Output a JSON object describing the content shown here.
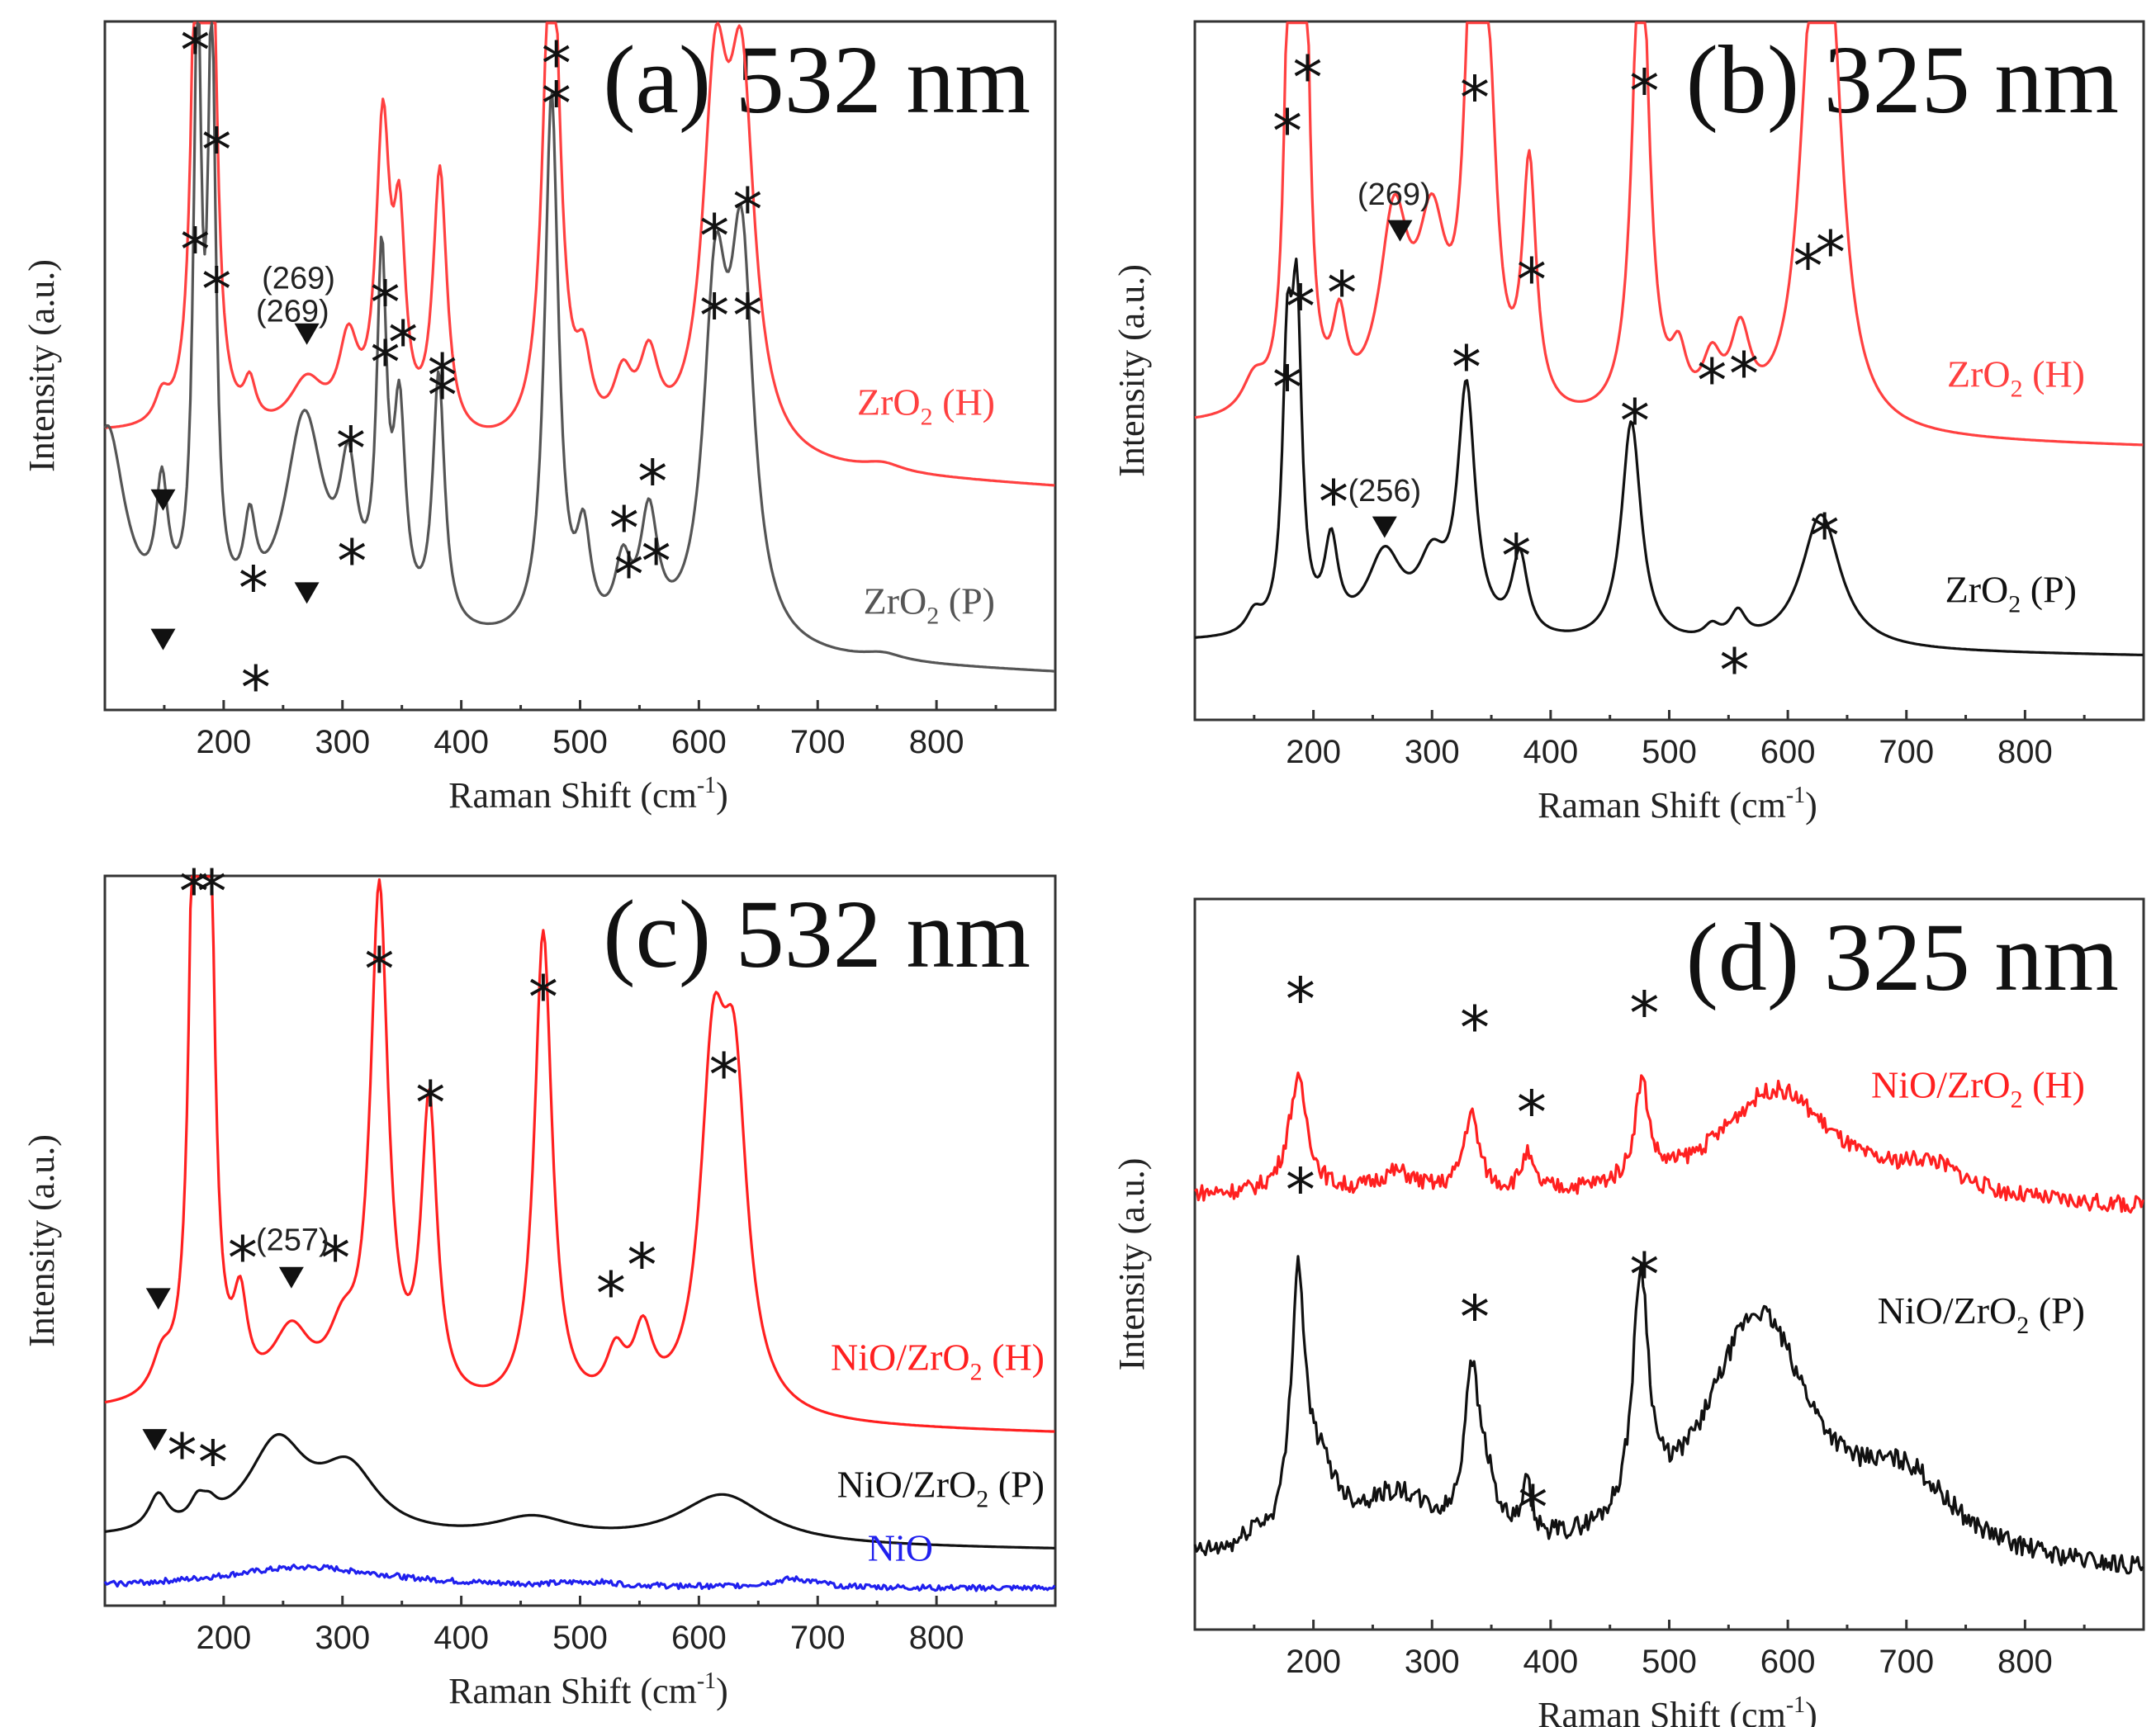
{
  "chart_data": [
    {
      "type": "line",
      "id": "a",
      "title": "(a) 532 nm",
      "xlabel": "Raman Shift (cm-1)",
      "xlabel_main": "Raman Shift (cm",
      "xlabel_sup": "-1",
      "xlabel_close": ")",
      "ylabel": "Intensity (a.u.)",
      "xlim": [
        100,
        900
      ],
      "xticks": [
        200,
        300,
        400,
        500,
        600,
        700,
        800
      ],
      "series": [
        {
          "name": "ZrO2 (H)",
          "label_main": "ZrO",
          "label_sub": "2",
          "label_rest": " (H)",
          "color": "#ff4040",
          "baseline": 0.4,
          "slope": -0.08,
          "noise": 0.0,
          "peaks": [
            [
              148,
              0.04,
              7
            ],
            [
              178,
              0.93,
              5
            ],
            [
              190,
              0.73,
              5
            ],
            [
              222,
              0.06,
              6
            ],
            [
              270,
              0.08,
              18
            ],
            [
              305,
              0.13,
              10
            ],
            [
              334,
              0.45,
              7
            ],
            [
              348,
              0.28,
              6
            ],
            [
              382,
              0.4,
              7
            ],
            [
              476,
              0.85,
              8
            ],
            [
              503,
              0.1,
              8
            ],
            [
              536,
              0.09,
              10
            ],
            [
              558,
              0.12,
              10
            ],
            [
              614,
              0.52,
              13
            ],
            [
              636,
              0.52,
              13
            ],
            [
              755,
              0.012,
              20
            ]
          ]
        },
        {
          "name": "ZrO2 (P)",
          "label_main": "ZrO",
          "label_sub": "2",
          "label_rest": " (P)",
          "color": "#555555",
          "baseline": 0.1,
          "slope": -0.06,
          "noise": 0.0,
          "peaks": [
            [
              102,
              0.3,
              18
            ],
            [
              148,
              0.18,
              6
            ],
            [
              178,
              0.88,
              4
            ],
            [
              190,
              0.86,
              4
            ],
            [
              222,
              0.12,
              6
            ],
            [
              268,
              0.32,
              20
            ],
            [
              305,
              0.2,
              9
            ],
            [
              333,
              0.52,
              5
            ],
            [
              348,
              0.3,
              6
            ],
            [
              381,
              0.38,
              6
            ],
            [
              476,
              0.82,
              7
            ],
            [
              503,
              0.14,
              7
            ],
            [
              536,
              0.1,
              8
            ],
            [
              558,
              0.18,
              9
            ],
            [
              614,
              0.5,
              12
            ],
            [
              636,
              0.56,
              12
            ],
            [
              755,
              0.01,
              20
            ]
          ]
        }
      ],
      "markers": [
        {
          "kind": "star",
          "x": 176,
          "y": 0.98
        },
        {
          "kind": "star",
          "x": 194,
          "y": 0.83
        },
        {
          "kind": "star",
          "x": 480,
          "y": 0.9
        },
        {
          "kind": "star",
          "x": 336,
          "y": 0.51
        },
        {
          "kind": "star",
          "x": 384,
          "y": 0.46
        },
        {
          "kind": "star",
          "x": 308,
          "y": 0.21
        },
        {
          "kind": "star",
          "x": 541,
          "y": 0.19
        },
        {
          "kind": "star",
          "x": 564,
          "y": 0.21
        },
        {
          "kind": "star",
          "x": 613,
          "y": 0.58
        },
        {
          "kind": "star",
          "x": 641,
          "y": 0.58
        },
        {
          "kind": "star",
          "x": 176,
          "y": 0.68
        },
        {
          "kind": "star",
          "x": 194,
          "y": 0.62
        },
        {
          "kind": "star",
          "x": 225,
          "y": 0.17
        },
        {
          "kind": "star",
          "x": 227,
          "y": 0.02
        },
        {
          "kind": "star",
          "x": 480,
          "y": 0.96
        },
        {
          "kind": "star",
          "x": 336,
          "y": 0.6
        },
        {
          "kind": "star",
          "x": 351,
          "y": 0.54
        },
        {
          "kind": "star",
          "x": 384,
          "y": 0.49
        },
        {
          "kind": "star",
          "x": 307,
          "y": 0.38
        },
        {
          "kind": "star",
          "x": 537,
          "y": 0.26
        },
        {
          "kind": "star",
          "x": 561,
          "y": 0.33
        },
        {
          "kind": "star",
          "x": 613,
          "y": 0.7
        },
        {
          "kind": "star",
          "x": 641,
          "y": 0.74
        },
        {
          "kind": "tri",
          "x": 149,
          "y": 0.09
        },
        {
          "kind": "tri",
          "x": 270,
          "y": 0.16
        },
        {
          "kind": "tri",
          "x": 149,
          "y": 0.3
        },
        {
          "kind": "tri",
          "x": 270,
          "y": 0.55
        }
      ],
      "annotations": [
        {
          "text": "(269)",
          "x": 258,
          "y": 0.57
        },
        {
          "text": "(269)",
          "x": 263,
          "y": 0.62
        }
      ]
    },
    {
      "type": "line",
      "id": "b",
      "title": "(b) 325 nm",
      "xlabel": "Raman Shift (cm-1)",
      "xlabel_main": "Raman Shift (cm",
      "xlabel_sup": "-1",
      "xlabel_close": ")",
      "ylabel": "Intensity (a.u.)",
      "xlim": [
        100,
        900
      ],
      "xticks": [
        200,
        300,
        400,
        500,
        600,
        700,
        800
      ],
      "series": [
        {
          "name": "ZrO2 (H)",
          "label_main": "ZrO",
          "label_sub": "2",
          "label_rest": " (H)",
          "color": "#ff4040",
          "baseline": 0.42,
          "slope": -0.03,
          "noise": 0.0,
          "peaks": [
            [
              150,
              0.05,
              12
            ],
            [
              180,
              0.68,
              5
            ],
            [
              192,
              0.78,
              5
            ],
            [
              222,
              0.12,
              7
            ],
            [
              268,
              0.28,
              15
            ],
            [
              300,
              0.25,
              15
            ],
            [
              334,
              0.62,
              8
            ],
            [
              348,
              0.4,
              8
            ],
            [
              382,
              0.36,
              7
            ],
            [
              476,
              0.78,
              8
            ],
            [
              508,
              0.08,
              8
            ],
            [
              536,
              0.08,
              10
            ],
            [
              560,
              0.12,
              10
            ],
            [
              620,
              0.48,
              13
            ],
            [
              636,
              0.52,
              13
            ]
          ]
        },
        {
          "name": "ZrO2 (P)",
          "label_main": "ZrO",
          "label_sub": "2",
          "label_rest": " (P)",
          "color": "#111111",
          "baseline": 0.1,
          "slope": -0.02,
          "noise": 0.0,
          "peaks": [
            [
              150,
              0.03,
              8
            ],
            [
              178,
              0.38,
              5
            ],
            [
              186,
              0.44,
              5
            ],
            [
              215,
              0.13,
              7
            ],
            [
              260,
              0.12,
              18
            ],
            [
              300,
              0.1,
              15
            ],
            [
              329,
              0.36,
              9
            ],
            [
              374,
              0.12,
              8
            ],
            [
              468,
              0.33,
              10
            ],
            [
              536,
              0.02,
              8
            ],
            [
              558,
              0.04,
              8
            ],
            [
              628,
              0.2,
              20
            ]
          ]
        }
      ],
      "markers": [
        {
          "kind": "star",
          "x": 178,
          "y": 0.86
        },
        {
          "kind": "star",
          "x": 195,
          "y": 0.94
        },
        {
          "kind": "star",
          "x": 224,
          "y": 0.62
        },
        {
          "kind": "star",
          "x": 336,
          "y": 0.91
        },
        {
          "kind": "star",
          "x": 384,
          "y": 0.64
        },
        {
          "kind": "star",
          "x": 479,
          "y": 0.92
        },
        {
          "kind": "star",
          "x": 617,
          "y": 0.66
        },
        {
          "kind": "star",
          "x": 636,
          "y": 0.68
        },
        {
          "kind": "star",
          "x": 536,
          "y": 0.49
        },
        {
          "kind": "star",
          "x": 563,
          "y": 0.5
        },
        {
          "kind": "star",
          "x": 178,
          "y": 0.48
        },
        {
          "kind": "star",
          "x": 189,
          "y": 0.6
        },
        {
          "kind": "star",
          "x": 217,
          "y": 0.31
        },
        {
          "kind": "star",
          "x": 329,
          "y": 0.51
        },
        {
          "kind": "star",
          "x": 371,
          "y": 0.23
        },
        {
          "kind": "star",
          "x": 471,
          "y": 0.43
        },
        {
          "kind": "star",
          "x": 555,
          "y": 0.06
        },
        {
          "kind": "star",
          "x": 631,
          "y": 0.26
        },
        {
          "kind": "tri",
          "x": 273,
          "y": 0.71
        },
        {
          "kind": "tri",
          "x": 260,
          "y": 0.27
        }
      ],
      "annotations": [
        {
          "text": "(269)",
          "x": 268,
          "y": 0.75
        },
        {
          "text": "(256)",
          "x": 260,
          "y": 0.31
        }
      ]
    },
    {
      "type": "line",
      "id": "c",
      "title": "(c) 532 nm",
      "xlabel": "Raman Shift (cm-1)",
      "xlabel_main": "Raman Shift (cm",
      "xlabel_sup": "-1",
      "xlabel_close": ")",
      "ylabel": "Intensity (a.u.)",
      "xlim": [
        100,
        900
      ],
      "xticks": [
        200,
        300,
        400,
        500,
        600,
        700,
        800
      ],
      "series": [
        {
          "name": "NiO/ZrO2 (H)",
          "label_main": "NiO/ZrO",
          "label_sub": "2",
          "label_rest": " (H)",
          "color": "#ff2020",
          "baseline": 0.26,
          "slope": -0.03,
          "noise": 0.0,
          "peaks": [
            [
              148,
              0.05,
              10
            ],
            [
              176,
              0.98,
              5
            ],
            [
              187,
              0.98,
              5
            ],
            [
              214,
              0.12,
              7
            ],
            [
              257,
              0.1,
              20
            ],
            [
              300,
              0.08,
              15
            ],
            [
              331,
              0.72,
              9
            ],
            [
              373,
              0.42,
              8
            ],
            [
              469,
              0.68,
              9
            ],
            [
              530,
              0.07,
              10
            ],
            [
              553,
              0.1,
              10
            ],
            [
              612,
              0.45,
              13
            ],
            [
              630,
              0.42,
              13
            ]
          ]
        },
        {
          "name": "NiO/ZrO2 (P)",
          "label_main": "NiO/ZrO",
          "label_sub": "2",
          "label_rest": " (P)",
          "color": "#111111",
          "baseline": 0.08,
          "slope": -0.015,
          "noise": 0.0,
          "peaks": [
            [
              145,
              0.05,
              10
            ],
            [
              178,
              0.03,
              8
            ],
            [
              188,
              0.02,
              8
            ],
            [
              245,
              0.13,
              30
            ],
            [
              305,
              0.09,
              30
            ],
            [
              460,
              0.03,
              40
            ],
            [
              620,
              0.07,
              45
            ]
          ]
        },
        {
          "name": "NiO",
          "label_main": "NiO",
          "label_sub": "",
          "label_rest": "",
          "color": "#2020ee",
          "baseline": 0.01,
          "slope": 0.0,
          "noise": 0.004,
          "peaks": [
            [
              270,
              0.03,
              90
            ],
            [
              510,
              0.006,
              30
            ],
            [
              680,
              0.012,
              25
            ]
          ]
        }
      ],
      "markers": [
        {
          "kind": "star",
          "x": 175,
          "y": 1.0
        },
        {
          "kind": "star",
          "x": 190,
          "y": 1.0
        },
        {
          "kind": "star",
          "x": 216,
          "y": 0.48
        },
        {
          "kind": "star",
          "x": 294,
          "y": 0.48
        },
        {
          "kind": "star",
          "x": 331,
          "y": 0.89
        },
        {
          "kind": "star",
          "x": 374,
          "y": 0.7
        },
        {
          "kind": "star",
          "x": 469,
          "y": 0.85
        },
        {
          "kind": "star",
          "x": 526,
          "y": 0.43
        },
        {
          "kind": "star",
          "x": 552,
          "y": 0.47
        },
        {
          "kind": "star",
          "x": 621,
          "y": 0.74
        },
        {
          "kind": "star",
          "x": 165,
          "y": 0.2
        },
        {
          "kind": "star",
          "x": 191,
          "y": 0.19
        },
        {
          "kind": "tri",
          "x": 145,
          "y": 0.42
        },
        {
          "kind": "tri",
          "x": 257,
          "y": 0.45
        },
        {
          "kind": "tri",
          "x": 142,
          "y": 0.22
        }
      ],
      "annotations": [
        {
          "text": "(257)",
          "x": 258,
          "y": 0.49
        }
      ]
    },
    {
      "type": "line",
      "id": "d",
      "title": "(d) 325 nm",
      "xlabel": "Raman Shift (cm-1)",
      "xlabel_main": "Raman Shift (cm",
      "xlabel_sup": "-1",
      "xlabel_close": ")",
      "ylabel": "Intensity (a.u.)",
      "xlim": [
        100,
        900
      ],
      "xticks": [
        200,
        300,
        400,
        500,
        600,
        700,
        800
      ],
      "series": [
        {
          "name": "NiO/ZrO2 (H)",
          "label_main": "NiO/ZrO",
          "label_sub": "2",
          "label_rest": " (H)",
          "color": "#ff2020",
          "baseline": 0.6,
          "slope": -0.02,
          "noise": 0.012,
          "peaks": [
            [
              187,
              0.16,
              10
            ],
            [
              270,
              0.03,
              20
            ],
            [
              333,
              0.11,
              8
            ],
            [
              380,
              0.05,
              6
            ],
            [
              477,
              0.14,
              7
            ],
            [
              590,
              0.16,
              60
            ],
            [
              720,
              0.04,
              35
            ]
          ]
        },
        {
          "name": "NiO/ZrO2 (P)",
          "label_main": "NiO/ZrO",
          "label_sub": "2",
          "label_rest": " (P)",
          "color": "#111111",
          "baseline": 0.08,
          "slope": -0.02,
          "noise": 0.014,
          "peaks": [
            [
              150,
              0.02,
              8
            ],
            [
              187,
              0.35,
              7
            ],
            [
              205,
              0.1,
              20
            ],
            [
              270,
              0.08,
              40
            ],
            [
              333,
              0.22,
              7
            ],
            [
              345,
              0.08,
              10
            ],
            [
              380,
              0.07,
              5
            ],
            [
              476,
              0.34,
              8
            ],
            [
              575,
              0.35,
              55
            ],
            [
              700,
              0.1,
              50
            ]
          ]
        }
      ],
      "markers": [
        {
          "kind": "star",
          "x": 189,
          "y": 0.88
        },
        {
          "kind": "star",
          "x": 336,
          "y": 0.84
        },
        {
          "kind": "star",
          "x": 384,
          "y": 0.72
        },
        {
          "kind": "star",
          "x": 479,
          "y": 0.86
        },
        {
          "kind": "star",
          "x": 189,
          "y": 0.61
        },
        {
          "kind": "star",
          "x": 336,
          "y": 0.43
        },
        {
          "kind": "star",
          "x": 385,
          "y": 0.16
        },
        {
          "kind": "star",
          "x": 479,
          "y": 0.49
        }
      ],
      "annotations": []
    }
  ]
}
